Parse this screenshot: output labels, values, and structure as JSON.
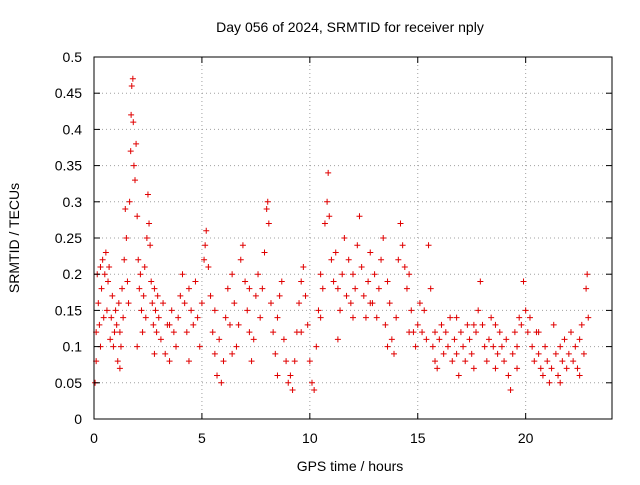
{
  "chart_data": {
    "type": "scatter",
    "title": "Day 056 of 2024, SRMTID for receiver nply",
    "xlabel": "GPS time / hours",
    "ylabel": "SRMTID / TECUs",
    "xlim": [
      0,
      24
    ],
    "ylim": [
      0,
      0.5
    ],
    "xticks": [
      0,
      5,
      10,
      15,
      20
    ],
    "yticks": [
      0,
      0.05,
      0.1,
      0.15,
      0.2,
      0.25,
      0.3,
      0.35,
      0.4,
      0.45,
      0.5
    ],
    "x_tick_labels": [
      "0",
      "5",
      "10",
      "15",
      "20"
    ],
    "y_tick_labels": [
      "0",
      "0.05",
      "0.1",
      "0.15",
      "0.2",
      "0.25",
      "0.3",
      "0.35",
      "0.4",
      "0.45",
      "0.5"
    ],
    "grid": true,
    "marker": "+",
    "color": "#e00000",
    "series": [
      {
        "name": "",
        "points": [
          [
            0.05,
            0.05
          ],
          [
            0.1,
            0.08
          ],
          [
            0.1,
            0.12
          ],
          [
            0.15,
            0.2
          ],
          [
            0.2,
            0.16
          ],
          [
            0.25,
            0.13
          ],
          [
            0.3,
            0.21
          ],
          [
            0.35,
            0.18
          ],
          [
            0.4,
            0.22
          ],
          [
            0.45,
            0.14
          ],
          [
            0.5,
            0.2
          ],
          [
            0.55,
            0.23
          ],
          [
            0.6,
            0.15
          ],
          [
            0.65,
            0.19
          ],
          [
            0.7,
            0.21
          ],
          [
            0.75,
            0.11
          ],
          [
            0.8,
            0.14
          ],
          [
            0.85,
            0.17
          ],
          [
            0.9,
            0.1
          ],
          [
            0.95,
            0.12
          ],
          [
            1.0,
            0.15
          ],
          [
            1.05,
            0.13
          ],
          [
            1.1,
            0.08
          ],
          [
            1.15,
            0.16
          ],
          [
            1.2,
            0.12
          ],
          [
            1.25,
            0.1
          ],
          [
            1.3,
            0.18
          ],
          [
            1.35,
            0.14
          ],
          [
            1.4,
            0.22
          ],
          [
            1.45,
            0.29
          ],
          [
            1.5,
            0.25
          ],
          [
            1.55,
            0.19
          ],
          [
            1.6,
            0.16
          ],
          [
            1.65,
            0.3
          ],
          [
            1.7,
            0.37
          ],
          [
            1.72,
            0.42
          ],
          [
            1.75,
            0.46
          ],
          [
            1.8,
            0.47
          ],
          [
            1.82,
            0.41
          ],
          [
            1.85,
            0.35
          ],
          [
            1.9,
            0.33
          ],
          [
            1.95,
            0.38
          ],
          [
            2.0,
            0.28
          ],
          [
            2.05,
            0.22
          ],
          [
            2.1,
            0.18
          ],
          [
            2.15,
            0.2
          ],
          [
            2.2,
            0.15
          ],
          [
            2.25,
            0.12
          ],
          [
            2.3,
            0.17
          ],
          [
            2.35,
            0.21
          ],
          [
            2.4,
            0.14
          ],
          [
            2.45,
            0.25
          ],
          [
            2.5,
            0.31
          ],
          [
            2.55,
            0.27
          ],
          [
            2.6,
            0.24
          ],
          [
            2.65,
            0.19
          ],
          [
            2.7,
            0.16
          ],
          [
            2.75,
            0.13
          ],
          [
            2.8,
            0.18
          ],
          [
            2.85,
            0.15
          ],
          [
            2.9,
            0.12
          ],
          [
            2.95,
            0.17
          ],
          [
            3.0,
            0.14
          ],
          [
            3.1,
            0.11
          ],
          [
            3.2,
            0.16
          ],
          [
            3.3,
            0.09
          ],
          [
            3.4,
            0.13
          ],
          [
            3.5,
            0.08
          ],
          [
            3.6,
            0.15
          ],
          [
            3.7,
            0.12
          ],
          [
            3.8,
            0.1
          ],
          [
            3.9,
            0.14
          ],
          [
            4.0,
            0.17
          ],
          [
            4.1,
            0.2
          ],
          [
            4.2,
            0.16
          ],
          [
            4.3,
            0.12
          ],
          [
            4.4,
            0.18
          ],
          [
            4.5,
            0.15
          ],
          [
            4.6,
            0.13
          ],
          [
            4.7,
            0.19
          ],
          [
            4.8,
            0.14
          ],
          [
            4.9,
            0.1
          ],
          [
            5.0,
            0.16
          ],
          [
            5.1,
            0.22
          ],
          [
            5.15,
            0.24
          ],
          [
            5.2,
            0.26
          ],
          [
            5.3,
            0.21
          ],
          [
            5.4,
            0.17
          ],
          [
            5.5,
            0.12
          ],
          [
            5.6,
            0.09
          ],
          [
            5.7,
            0.06
          ],
          [
            5.8,
            0.11
          ],
          [
            5.9,
            0.05
          ],
          [
            6.0,
            0.08
          ],
          [
            6.1,
            0.14
          ],
          [
            6.2,
            0.18
          ],
          [
            6.3,
            0.13
          ],
          [
            6.4,
            0.2
          ],
          [
            6.5,
            0.16
          ],
          [
            6.6,
            0.1
          ],
          [
            6.7,
            0.13
          ],
          [
            6.8,
            0.22
          ],
          [
            6.9,
            0.24
          ],
          [
            7.0,
            0.19
          ],
          [
            7.1,
            0.15
          ],
          [
            7.2,
            0.12
          ],
          [
            7.3,
            0.08
          ],
          [
            7.4,
            0.11
          ],
          [
            7.5,
            0.17
          ],
          [
            7.6,
            0.2
          ],
          [
            7.7,
            0.14
          ],
          [
            7.8,
            0.18
          ],
          [
            7.9,
            0.23
          ],
          [
            8.0,
            0.29
          ],
          [
            8.05,
            0.3
          ],
          [
            8.1,
            0.27
          ],
          [
            8.2,
            0.16
          ],
          [
            8.3,
            0.12
          ],
          [
            8.4,
            0.09
          ],
          [
            8.5,
            0.14
          ],
          [
            8.6,
            0.17
          ],
          [
            8.7,
            0.19
          ],
          [
            8.8,
            0.11
          ],
          [
            8.9,
            0.08
          ],
          [
            9.0,
            0.05
          ],
          [
            9.1,
            0.06
          ],
          [
            9.2,
            0.04
          ],
          [
            9.3,
            0.08
          ],
          [
            9.4,
            0.12
          ],
          [
            9.5,
            0.16
          ],
          [
            9.6,
            0.19
          ],
          [
            9.7,
            0.21
          ],
          [
            9.8,
            0.17
          ],
          [
            9.9,
            0.13
          ],
          [
            10.0,
            0.08
          ],
          [
            10.1,
            0.05
          ],
          [
            10.2,
            0.04
          ],
          [
            10.3,
            0.1
          ],
          [
            10.4,
            0.15
          ],
          [
            10.5,
            0.2
          ],
          [
            10.6,
            0.18
          ],
          [
            10.7,
            0.27
          ],
          [
            10.8,
            0.3
          ],
          [
            10.85,
            0.34
          ],
          [
            10.9,
            0.28
          ],
          [
            11.0,
            0.22
          ],
          [
            11.1,
            0.19
          ],
          [
            11.2,
            0.23
          ],
          [
            11.3,
            0.18
          ],
          [
            11.4,
            0.15
          ],
          [
            11.5,
            0.2
          ],
          [
            11.6,
            0.25
          ],
          [
            11.7,
            0.17
          ],
          [
            11.8,
            0.22
          ],
          [
            11.9,
            0.16
          ],
          [
            12.0,
            0.2
          ],
          [
            12.1,
            0.18
          ],
          [
            12.2,
            0.24
          ],
          [
            12.3,
            0.28
          ],
          [
            12.4,
            0.21
          ],
          [
            12.5,
            0.17
          ],
          [
            12.6,
            0.14
          ],
          [
            12.7,
            0.19
          ],
          [
            12.8,
            0.23
          ],
          [
            12.9,
            0.16
          ],
          [
            13.0,
            0.2
          ],
          [
            13.1,
            0.14
          ],
          [
            13.2,
            0.18
          ],
          [
            13.3,
            0.22
          ],
          [
            13.4,
            0.25
          ],
          [
            13.5,
            0.13
          ],
          [
            13.6,
            0.19
          ],
          [
            13.7,
            0.16
          ],
          [
            13.8,
            0.11
          ],
          [
            13.9,
            0.09
          ],
          [
            14.0,
            0.14
          ],
          [
            14.1,
            0.22
          ],
          [
            14.2,
            0.27
          ],
          [
            14.3,
            0.24
          ],
          [
            14.4,
            0.21
          ],
          [
            14.5,
            0.18
          ],
          [
            14.6,
            0.2
          ],
          [
            14.7,
            0.15
          ],
          [
            14.8,
            0.12
          ],
          [
            14.9,
            0.1
          ],
          [
            15.0,
            0.13
          ],
          [
            15.1,
            0.16
          ],
          [
            15.2,
            0.12
          ],
          [
            15.3,
            0.15
          ],
          [
            15.4,
            0.11
          ],
          [
            15.5,
            0.24
          ],
          [
            15.6,
            0.18
          ],
          [
            15.7,
            0.1
          ],
          [
            15.8,
            0.08
          ],
          [
            15.9,
            0.07
          ],
          [
            16.0,
            0.11
          ],
          [
            16.1,
            0.13
          ],
          [
            16.2,
            0.09
          ],
          [
            16.3,
            0.12
          ],
          [
            16.4,
            0.1
          ],
          [
            16.5,
            0.14
          ],
          [
            16.6,
            0.08
          ],
          [
            16.7,
            0.11
          ],
          [
            16.8,
            0.09
          ],
          [
            16.9,
            0.06
          ],
          [
            17.0,
            0.12
          ],
          [
            17.1,
            0.1
          ],
          [
            17.2,
            0.08
          ],
          [
            17.3,
            0.13
          ],
          [
            17.4,
            0.11
          ],
          [
            17.5,
            0.09
          ],
          [
            17.6,
            0.07
          ],
          [
            17.7,
            0.12
          ],
          [
            17.8,
            0.15
          ],
          [
            17.9,
            0.19
          ],
          [
            18.0,
            0.13
          ],
          [
            18.1,
            0.1
          ],
          [
            18.2,
            0.08
          ],
          [
            18.3,
            0.11
          ],
          [
            18.4,
            0.14
          ],
          [
            18.5,
            0.1
          ],
          [
            18.6,
            0.07
          ],
          [
            18.7,
            0.09
          ],
          [
            18.8,
            0.12
          ],
          [
            18.9,
            0.1
          ],
          [
            19.0,
            0.08
          ],
          [
            19.1,
            0.11
          ],
          [
            19.2,
            0.06
          ],
          [
            19.3,
            0.04
          ],
          [
            19.4,
            0.09
          ],
          [
            19.5,
            0.12
          ],
          [
            19.6,
            0.1
          ],
          [
            19.7,
            0.14
          ],
          [
            19.8,
            0.13
          ],
          [
            19.9,
            0.19
          ],
          [
            20.0,
            0.15
          ],
          [
            20.1,
            0.12
          ],
          [
            20.2,
            0.14
          ],
          [
            20.3,
            0.1
          ],
          [
            20.4,
            0.08
          ],
          [
            20.5,
            0.12
          ],
          [
            20.6,
            0.09
          ],
          [
            20.7,
            0.07
          ],
          [
            20.8,
            0.06
          ],
          [
            20.9,
            0.1
          ],
          [
            21.0,
            0.08
          ],
          [
            21.1,
            0.05
          ],
          [
            21.2,
            0.07
          ],
          [
            21.3,
            0.13
          ],
          [
            21.4,
            0.09
          ],
          [
            21.5,
            0.06
          ],
          [
            21.6,
            0.05
          ],
          [
            21.7,
            0.08
          ],
          [
            21.8,
            0.11
          ],
          [
            21.9,
            0.07
          ],
          [
            22.0,
            0.09
          ],
          [
            22.1,
            0.12
          ],
          [
            22.2,
            0.08
          ],
          [
            22.3,
            0.1
          ],
          [
            22.4,
            0.07
          ],
          [
            22.5,
            0.11
          ],
          [
            22.6,
            0.13
          ],
          [
            22.7,
            0.09
          ],
          [
            22.8,
            0.18
          ],
          [
            22.85,
            0.2
          ],
          [
            22.9,
            0.14
          ],
          [
            0.3,
            0.1
          ],
          [
            1.2,
            0.07
          ],
          [
            2.0,
            0.1
          ],
          [
            2.8,
            0.09
          ],
          [
            3.5,
            0.13
          ],
          [
            4.4,
            0.08
          ],
          [
            5.6,
            0.15
          ],
          [
            6.4,
            0.09
          ],
          [
            7.2,
            0.18
          ],
          [
            8.5,
            0.06
          ],
          [
            9.6,
            0.12
          ],
          [
            10.5,
            0.14
          ],
          [
            11.3,
            0.11
          ],
          [
            12.0,
            0.14
          ],
          [
            12.8,
            0.16
          ],
          [
            13.6,
            0.1
          ],
          [
            14.6,
            0.12
          ],
          [
            15.8,
            0.12
          ],
          [
            16.8,
            0.14
          ],
          [
            17.6,
            0.13
          ],
          [
            18.6,
            0.13
          ],
          [
            19.6,
            0.07
          ],
          [
            20.6,
            0.12
          ],
          [
            21.6,
            0.1
          ],
          [
            22.5,
            0.06
          ]
        ]
      }
    ]
  }
}
